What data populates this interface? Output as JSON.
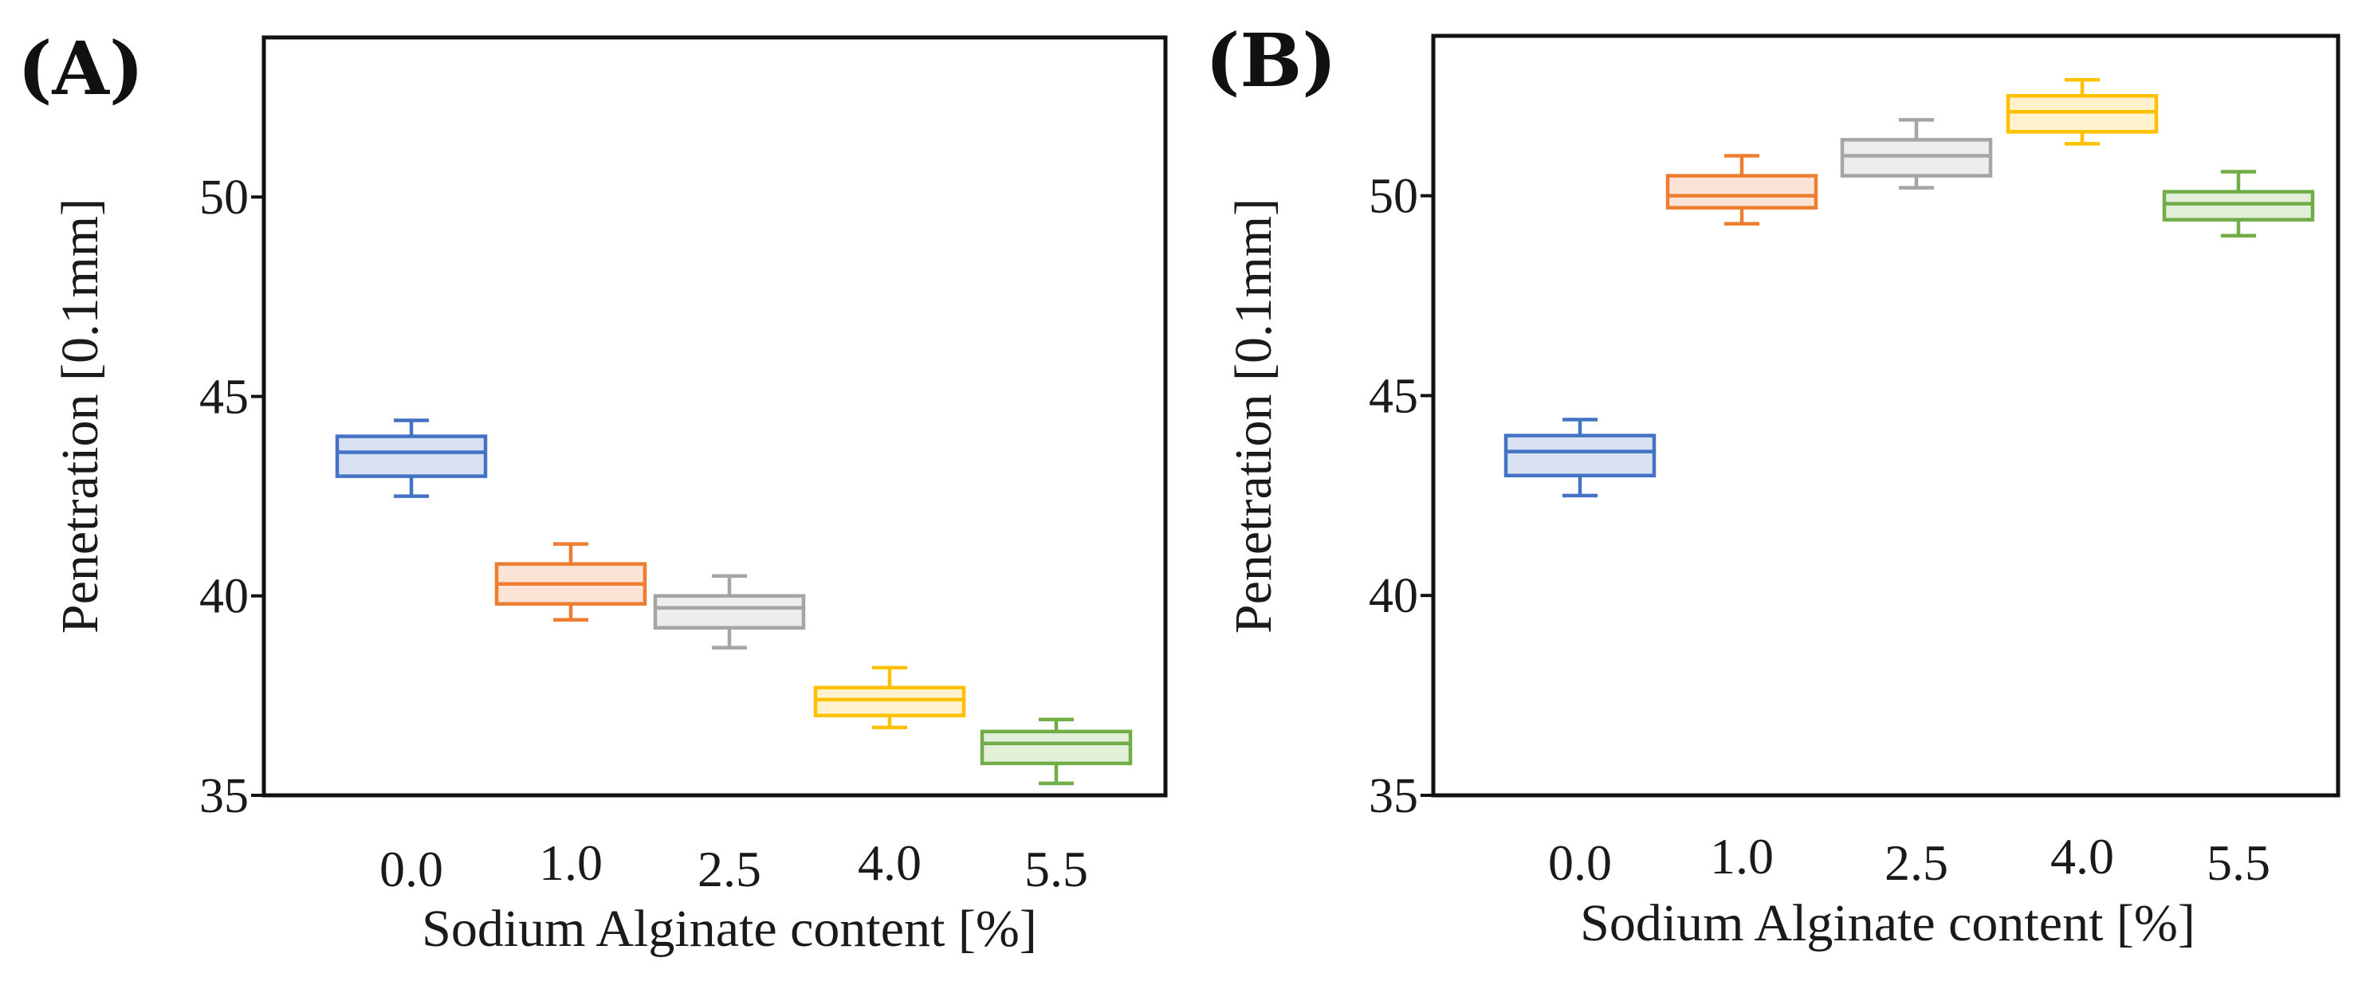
{
  "chart_data": [
    {
      "type": "box",
      "panel_label": "(A)",
      "title": "",
      "xlabel": "Sodium Alginate content [%]",
      "ylabel": "Penetration [0.1mm]",
      "ylim": [
        35,
        54
      ],
      "yticks": [
        "35",
        "40",
        "45",
        "50"
      ],
      "categories": [
        "0.0",
        "1.0",
        "2.5",
        "4.0",
        "5.5"
      ],
      "boxes": [
        {
          "category": "0.0",
          "min": 42.5,
          "q1": 43.0,
          "median": 43.6,
          "q3": 44.0,
          "max": 44.4,
          "color": "#4472C4",
          "fill": "#D9E2F3"
        },
        {
          "category": "1.0",
          "min": 39.4,
          "q1": 39.8,
          "median": 40.3,
          "q3": 40.8,
          "max": 41.3,
          "color": "#ED7D31",
          "fill": "#FBE3D6"
        },
        {
          "category": "2.5",
          "min": 38.7,
          "q1": 39.2,
          "median": 39.7,
          "q3": 40.0,
          "max": 40.5,
          "color": "#A5A5A5",
          "fill": "#EDEDED"
        },
        {
          "category": "4.0",
          "min": 36.7,
          "q1": 37.0,
          "median": 37.4,
          "q3": 37.7,
          "max": 38.2,
          "color": "#FFC000",
          "fill": "#FFF2CC"
        },
        {
          "category": "5.5",
          "min": 35.3,
          "q1": 35.8,
          "median": 36.3,
          "q3": 36.6,
          "max": 36.9,
          "color": "#70AD47",
          "fill": "#E2F0D9"
        }
      ]
    },
    {
      "type": "box",
      "panel_label": "(B)",
      "title": "",
      "xlabel": "Sodium Alginate content [%]",
      "ylabel": "Penetration [0.1mm]",
      "ylim": [
        35,
        54
      ],
      "yticks": [
        "35",
        "40",
        "45",
        "50"
      ],
      "categories": [
        "0.0",
        "1.0",
        "2.5",
        "4.0",
        "5.5"
      ],
      "boxes": [
        {
          "category": "0.0",
          "min": 42.5,
          "q1": 43.0,
          "median": 43.6,
          "q3": 44.0,
          "max": 44.4,
          "color": "#4472C4",
          "fill": "#D9E2F3"
        },
        {
          "category": "1.0",
          "min": 49.3,
          "q1": 49.7,
          "median": 50.0,
          "q3": 50.5,
          "max": 51.0,
          "color": "#ED7D31",
          "fill": "#FBE3D6"
        },
        {
          "category": "2.5",
          "min": 50.2,
          "q1": 50.5,
          "median": 51.0,
          "q3": 51.4,
          "max": 51.9,
          "color": "#A5A5A5",
          "fill": "#EDEDED"
        },
        {
          "category": "4.0",
          "min": 51.3,
          "q1": 51.6,
          "median": 52.1,
          "q3": 52.5,
          "max": 52.9,
          "color": "#FFC000",
          "fill": "#FFF2CC"
        },
        {
          "category": "5.5",
          "min": 49.0,
          "q1": 49.4,
          "median": 49.8,
          "q3": 50.1,
          "max": 50.6,
          "color": "#70AD47",
          "fill": "#E2F0D9"
        }
      ]
    }
  ]
}
